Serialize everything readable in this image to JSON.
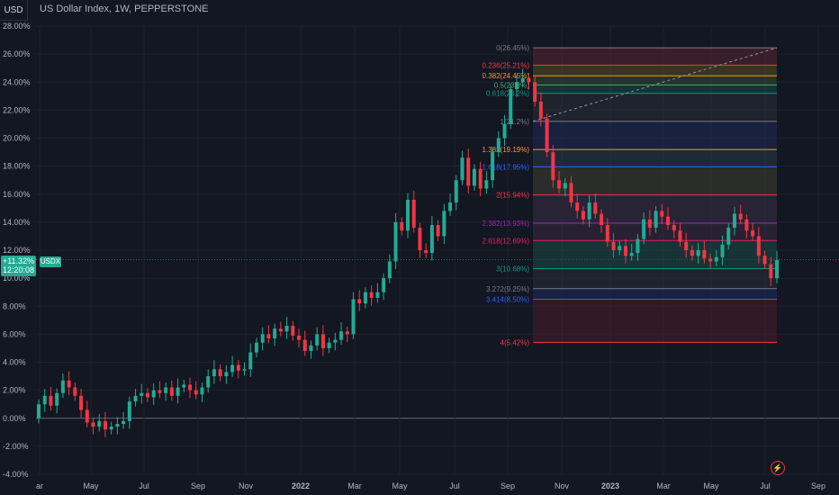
{
  "header": {
    "symbol_box": "USD",
    "title": "US Dollar Index, 1W, PEPPERSTONE"
  },
  "price_badge": {
    "change": "+11.32%",
    "countdown": "12:20:08"
  },
  "symbol_tag": "USDX",
  "icons": {
    "bolt": "lightning-icon"
  },
  "colors": {
    "background": "#131722",
    "up": "#22ab94",
    "down": "#f23645",
    "grid": "#1e222d",
    "axis_text": "#b2b5be"
  },
  "chart_data": {
    "type": "candlestick",
    "y_axis_labels": [
      "28.00%",
      "26.00%",
      "24.00%",
      "22.00%",
      "20.00%",
      "18.00%",
      "16.00%",
      "14.00%",
      "12.00%",
      "10.00%",
      "8.00%",
      "6.00%",
      "4.00%",
      "2.00%",
      "0.00%",
      "-2.00%",
      "-4.00%"
    ],
    "x_axis_labels": [
      "ar",
      "May",
      "Jul",
      "Sep",
      "Nov",
      "2022",
      "Mar",
      "May",
      "Jul",
      "Sep",
      "Nov",
      "2023",
      "Mar",
      "May",
      "Jul",
      "Sep"
    ],
    "ylim": [
      -4,
      28
    ],
    "current_value": 11.32,
    "candles_close": [
      1.0,
      1.6,
      0.9,
      1.8,
      2.7,
      2.2,
      1.6,
      0.6,
      -0.3,
      -0.6,
      -0.2,
      -0.8,
      -0.6,
      -0.4,
      -0.2,
      1.2,
      1.6,
      1.8,
      1.5,
      2.0,
      1.8,
      2.2,
      1.6,
      2.2,
      2.4,
      2.0,
      1.7,
      2.2,
      3.0,
      3.5,
      3.0,
      3.3,
      3.8,
      3.4,
      3.5,
      4.7,
      5.4,
      6.0,
      5.7,
      6.4,
      6.2,
      6.6,
      5.9,
      5.6,
      4.8,
      5.2,
      6.0,
      5.0,
      5.4,
      5.6,
      6.2,
      6.0,
      8.5,
      8.2,
      9.0,
      8.6,
      9.0,
      10.0,
      11.2,
      14.0,
      13.4,
      15.6,
      13.6,
      12.0,
      11.8,
      13.8,
      13.0,
      14.8,
      15.4,
      17.0,
      18.6,
      16.6,
      17.8,
      16.4,
      17.0,
      19.0,
      20.0,
      21.0,
      23.5,
      24.0,
      24.3,
      24.0,
      22.6,
      21.4,
      19.0,
      17.0,
      16.4,
      16.8,
      15.4,
      14.8,
      14.2,
      15.4,
      14.6,
      13.8,
      12.6,
      12.0,
      12.3,
      11.6,
      11.8,
      12.8,
      14.2,
      13.6,
      14.8,
      14.4,
      13.8,
      13.4,
      12.6,
      12.0,
      11.6,
      12.0,
      11.4,
      11.2,
      11.5,
      12.4,
      13.6,
      14.6,
      14.2,
      13.4,
      13.0,
      11.6,
      11.0,
      10.0,
      11.3
    ],
    "fibonacci": {
      "levels": [
        {
          "ratio": "0",
          "label": "0(26.45%)",
          "value": 26.45,
          "color": "#787b86"
        },
        {
          "ratio": "0.236",
          "label": "0.236(25.21%)",
          "value": 25.21,
          "color": "#f23645"
        },
        {
          "ratio": "0.382",
          "label": "0.382(24.45%)",
          "value": 24.45,
          "color": "#ff9800"
        },
        {
          "ratio": "0.5",
          "label": "0.5(23.8%)",
          "value": 23.8,
          "color": "#4caf50"
        },
        {
          "ratio": "0.618",
          "label": "0.618(23.2%)",
          "value": 23.2,
          "color": "#089981"
        },
        {
          "ratio": "1",
          "label": "1(21.2%)",
          "value": 21.2,
          "color": "#787b86"
        },
        {
          "ratio": "1.382",
          "label": "1.382(19.19%)",
          "value": 19.19,
          "color": "#ff9800"
        },
        {
          "ratio": "1.618",
          "label": "1.618(17.95%)",
          "value": 17.95,
          "color": "#2962ff"
        },
        {
          "ratio": "2",
          "label": "2(15.94%)",
          "value": 15.94,
          "color": "#f23645"
        },
        {
          "ratio": "2.382",
          "label": "2.382(13.93%)",
          "value": 13.93,
          "color": "#9c27b0"
        },
        {
          "ratio": "2.618",
          "label": "2.618(12.69%)",
          "value": 12.69,
          "color": "#e91e63"
        },
        {
          "ratio": "3",
          "label": "3(10.68%)",
          "value": 10.68,
          "color": "#089981"
        },
        {
          "ratio": "3.272",
          "label": "3.272(9.25%)",
          "value": 9.25,
          "color": "#787b86"
        },
        {
          "ratio": "3.414",
          "label": "3.414(8.50%)",
          "value": 8.5,
          "color": "#2962ff"
        },
        {
          "ratio": "4",
          "label": "4(5.42%)",
          "value": 5.42,
          "color": "#f23645"
        }
      ],
      "bands": [
        "#5a2530",
        "#5a4a25",
        "#2d4a35",
        "#1e4a45",
        "#2a2e39",
        "#1e2a5a",
        "#2a3a4a",
        "#3e4030",
        "#3a2e45",
        "#3a2a40",
        "#1e4a45",
        "#2a2e39",
        "#1e2a5a",
        "#4a1e28"
      ],
      "trend_start": 21.2,
      "trend_end": 26.45
    }
  }
}
